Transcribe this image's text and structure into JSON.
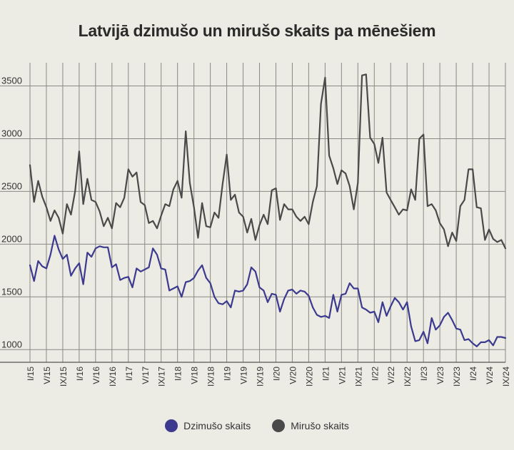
{
  "title": "Latvijā dzimušo un mirušo skaits pa mēnešiem",
  "colors": {
    "births": "#3b3a8f",
    "deaths": "#4a4a4a",
    "grid": "#8a8a85",
    "background": "#ecebe4"
  },
  "chart_data": {
    "type": "line",
    "title": "Latvijā dzimušo un mirušo skaits pa mēnešiem",
    "xlabel": "",
    "ylabel": "",
    "ylim": [
      880,
      3720
    ],
    "yticks": [
      1000,
      1500,
      2000,
      2500,
      3000,
      3500
    ],
    "grid": true,
    "legend_position": "bottom",
    "x_tick_labels": [
      "I/15",
      "V/15",
      "IX/15",
      "I/16",
      "V/16",
      "IX/16",
      "I/17",
      "V/17",
      "IX/17",
      "I/18",
      "V/18",
      "IX/18",
      "I/19",
      "V/19",
      "IX/19",
      "I/20",
      "V/20",
      "IX/20",
      "I/21",
      "V/21",
      "IX/21",
      "I/22",
      "V/22",
      "IX/22",
      "I/23",
      "V/23",
      "IX/23",
      "I/24",
      "V/24",
      "IX/24"
    ],
    "x_tick_step_months": 4,
    "series": [
      {
        "name": "Dzimušo skaits",
        "color": "#3b3a8f",
        "values": [
          1800,
          1650,
          1840,
          1790,
          1770,
          1900,
          2080,
          1950,
          1860,
          1900,
          1700,
          1770,
          1820,
          1620,
          1920,
          1880,
          1960,
          1980,
          1970,
          1970,
          1780,
          1810,
          1660,
          1680,
          1690,
          1590,
          1770,
          1740,
          1760,
          1780,
          1960,
          1900,
          1770,
          1760,
          1560,
          1580,
          1600,
          1500,
          1640,
          1650,
          1680,
          1750,
          1800,
          1680,
          1630,
          1500,
          1440,
          1430,
          1460,
          1400,
          1560,
          1550,
          1560,
          1620,
          1780,
          1740,
          1590,
          1560,
          1450,
          1530,
          1520,
          1360,
          1480,
          1560,
          1570,
          1530,
          1560,
          1550,
          1510,
          1400,
          1330,
          1310,
          1320,
          1300,
          1520,
          1360,
          1520,
          1530,
          1630,
          1580,
          1580,
          1400,
          1380,
          1350,
          1360,
          1260,
          1450,
          1320,
          1410,
          1490,
          1450,
          1380,
          1450,
          1220,
          1080,
          1090,
          1170,
          1060,
          1300,
          1190,
          1230,
          1310,
          1350,
          1280,
          1200,
          1190,
          1090,
          1100,
          1060,
          1030,
          1070,
          1070,
          1090,
          1040,
          1120,
          1120,
          1110
        ]
      },
      {
        "name": "Mirušo skaits",
        "color": "#4a4a4a",
        "values": [
          2750,
          2400,
          2600,
          2450,
          2350,
          2220,
          2320,
          2250,
          2100,
          2380,
          2280,
          2500,
          2880,
          2380,
          2620,
          2420,
          2400,
          2310,
          2170,
          2250,
          2150,
          2390,
          2350,
          2440,
          2710,
          2640,
          2680,
          2400,
          2370,
          2200,
          2220,
          2150,
          2270,
          2380,
          2360,
          2520,
          2600,
          2440,
          3070,
          2580,
          2350,
          2060,
          2390,
          2170,
          2160,
          2300,
          2250,
          2570,
          2850,
          2420,
          2470,
          2300,
          2260,
          2110,
          2240,
          2040,
          2180,
          2280,
          2190,
          2510,
          2530,
          2230,
          2380,
          2330,
          2330,
          2260,
          2220,
          2260,
          2190,
          2400,
          2550,
          3330,
          3580,
          2840,
          2720,
          2570,
          2700,
          2670,
          2550,
          2330,
          2580,
          3600,
          3610,
          3010,
          2950,
          2770,
          3010,
          2490,
          2420,
          2350,
          2280,
          2330,
          2320,
          2520,
          2420,
          3000,
          3040,
          2360,
          2380,
          2320,
          2200,
          2140,
          1980,
          2110,
          2030,
          2360,
          2420,
          2710,
          2710,
          2350,
          2340,
          2040,
          2140,
          2050,
          2020,
          2040,
          1960
        ]
      }
    ]
  },
  "legend": [
    {
      "label": "Dzimušo skaits",
      "color": "#3b3a8f"
    },
    {
      "label": "Mirušo skaits",
      "color": "#4a4a4a"
    }
  ]
}
